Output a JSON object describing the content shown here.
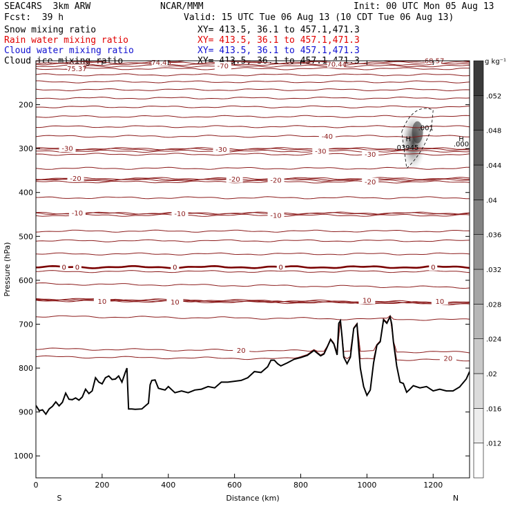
{
  "header": {
    "model": "SEAC4RS  3km ARW",
    "org": "NCAR/MMM",
    "init": "Init: 00 UTC Mon 05 Aug 13",
    "fcst": "Fcst:  39 h",
    "valid": "Valid: 15 UTC Tue 06 Aug 13 (10 CDT Tue 06 Aug 13)",
    "fields": [
      {
        "name": "Snow mixing ratio",
        "xy": "XY= 413.5, 36.1 to 457.1,471.3",
        "color": "#000000"
      },
      {
        "name": "Rain water mixing ratio",
        "xy": "XY= 413.5, 36.1 to 457.1,471.3",
        "color": "#e00000"
      },
      {
        "name": "Cloud water mixing ratio",
        "xy": "XY= 413.5, 36.1 to 457.1,471.3",
        "color": "#1010d0"
      },
      {
        "name": "Cloud ice mixing ratio",
        "xy": "XY= 413.5, 36.1 to 457.1,471.3",
        "color": "#000000"
      }
    ]
  },
  "chart_data": {
    "type": "cross-section",
    "xlabel": "Distance (km)",
    "ylabel": "Pressure (hPa)",
    "xlim": [
      0,
      1310
    ],
    "ylim": [
      100,
      1050
    ],
    "xticks": [
      0,
      200,
      400,
      600,
      800,
      1000,
      1200
    ],
    "yticks": [
      200,
      300,
      400,
      500,
      600,
      700,
      800,
      900,
      1000
    ],
    "ends": {
      "left": "S",
      "right": "N"
    },
    "colors": {
      "isotherm": "#8b1a1a",
      "freezing": "#7a0000",
      "terrain": "#000000"
    },
    "temperature_contours": [
      {
        "p": 118,
        "label": "-75.37",
        "x": 120
      },
      {
        "p": 104,
        "label": "-74.43",
        "x": 375
      },
      {
        "p": 112,
        "label": "-70",
        "x": 565
      },
      {
        "p": 108,
        "label": "-70.44",
        "x": 905
      },
      {
        "p": 100,
        "label": "-68.57",
        "x": 1200
      },
      {
        "p": 132,
        "label": "",
        "x": null
      },
      {
        "p": 148,
        "label": "",
        "x": null
      },
      {
        "p": 166,
        "label": "",
        "x": null
      },
      {
        "p": 185,
        "label": "",
        "x": null
      },
      {
        "p": 205,
        "label": "",
        "x": null
      },
      {
        "p": 227,
        "label": "",
        "x": null
      },
      {
        "p": 250,
        "label": "",
        "x": null
      },
      {
        "p": 272,
        "label": "-40",
        "x": 880
      },
      {
        "p": 300,
        "label": "-30",
        "x": 95
      },
      {
        "p": 302,
        "label": "-30",
        "x": 560
      },
      {
        "p": 306,
        "label": "-30",
        "x": 860
      },
      {
        "p": 313,
        "label": "-30",
        "x": 1010
      },
      {
        "p": 345,
        "label": "",
        "x": null
      },
      {
        "p": 368,
        "label": "-20",
        "x": 120
      },
      {
        "p": 370,
        "label": "-20",
        "x": 600
      },
      {
        "p": 372,
        "label": "-20",
        "x": 725
      },
      {
        "p": 376,
        "label": "-20",
        "x": 1010
      },
      {
        "p": 412,
        "label": "",
        "x": null
      },
      {
        "p": 447,
        "label": "-10",
        "x": 125
      },
      {
        "p": 448,
        "label": "-10",
        "x": 435
      },
      {
        "p": 452,
        "label": "-10",
        "x": 725
      },
      {
        "p": 488,
        "label": "",
        "x": null
      },
      {
        "p": 510,
        "label": "",
        "x": null
      },
      {
        "p": 540,
        "label": "",
        "x": null
      },
      {
        "p": 580,
        "label": "",
        "x": null
      },
      {
        "p": 612,
        "label": "",
        "x": null
      },
      {
        "p": 648,
        "label": "10",
        "x": 200
      },
      {
        "p": 650,
        "label": "10",
        "x": 420
      },
      {
        "p": 646,
        "label": "10",
        "x": 1000
      },
      {
        "p": 648,
        "label": "10",
        "x": 1220
      },
      {
        "p": 686,
        "label": "",
        "x": null
      },
      {
        "p": 760,
        "label": "20",
        "x": 620
      },
      {
        "p": 778,
        "label": "20",
        "x": 1245
      }
    ],
    "freezing_level": {
      "p": 570,
      "labels": [
        {
          "label": "0",
          "x": 85
        },
        {
          "label": "0",
          "x": 125
        },
        {
          "label": "0",
          "x": 420
        },
        {
          "label": "0",
          "x": 740
        },
        {
          "label": "0",
          "x": 1200
        }
      ]
    },
    "terrain": {
      "x": [
        0,
        10,
        20,
        30,
        40,
        50,
        60,
        70,
        80,
        90,
        100,
        110,
        120,
        130,
        140,
        150,
        160,
        170,
        180,
        190,
        200,
        210,
        220,
        230,
        240,
        250,
        260,
        270,
        275,
        280,
        290,
        300,
        320,
        340,
        345,
        350,
        360,
        370,
        380,
        390,
        400,
        420,
        440,
        460,
        480,
        500,
        520,
        540,
        560,
        580,
        600,
        620,
        640,
        660,
        680,
        700,
        710,
        720,
        730,
        740,
        760,
        780,
        800,
        820,
        840,
        860,
        870,
        880,
        890,
        900,
        910,
        915,
        920,
        925,
        930,
        940,
        950,
        960,
        970,
        975,
        980,
        990,
        1000,
        1010,
        1020,
        1030,
        1040,
        1050,
        1060,
        1070,
        1075,
        1080,
        1090,
        1100,
        1110,
        1120,
        1130,
        1140,
        1160,
        1180,
        1200,
        1220,
        1240,
        1260,
        1280,
        1300,
        1310
      ],
      "p": [
        885,
        897,
        895,
        905,
        893,
        887,
        877,
        886,
        878,
        857,
        871,
        872,
        868,
        873,
        866,
        848,
        858,
        852,
        822,
        832,
        836,
        822,
        818,
        826,
        825,
        818,
        832,
        810,
        800,
        893,
        893,
        894,
        893,
        880,
        838,
        828,
        827,
        846,
        848,
        850,
        842,
        856,
        852,
        856,
        850,
        848,
        842,
        845,
        832,
        832,
        830,
        828,
        822,
        808,
        810,
        797,
        782,
        782,
        790,
        795,
        788,
        780,
        776,
        771,
        760,
        772,
        768,
        752,
        735,
        745,
        770,
        698,
        692,
        730,
        775,
        790,
        775,
        710,
        700,
        755,
        800,
        842,
        862,
        850,
        788,
        748,
        740,
        690,
        698,
        683,
        700,
        740,
        795,
        832,
        835,
        855,
        848,
        840,
        845,
        842,
        852,
        848,
        852,
        852,
        843,
        825,
        808
      ]
    },
    "fill_colorbar": {
      "unit": "g kg⁻¹",
      "levels": [
        ".012",
        ".016",
        ".02",
        ".024",
        ".028",
        ".032",
        ".036",
        ".04",
        ".044",
        ".048",
        ".052"
      ]
    },
    "cloud_ice_annotations": [
      {
        "text": ".001",
        "x": 1178,
        "p": 258
      },
      {
        "text": "H",
        "x": 1125,
        "p": 283
      },
      {
        "text": ".03945",
        "x": 1120,
        "p": 303
      },
      {
        "text": "H",
        "x": 1285,
        "p": 283
      },
      {
        "text": ".000",
        "x": 1285,
        "p": 295
      }
    ],
    "cloud_ice_blob": {
      "x": 1140,
      "p": 285,
      "max": 0.039
    }
  }
}
